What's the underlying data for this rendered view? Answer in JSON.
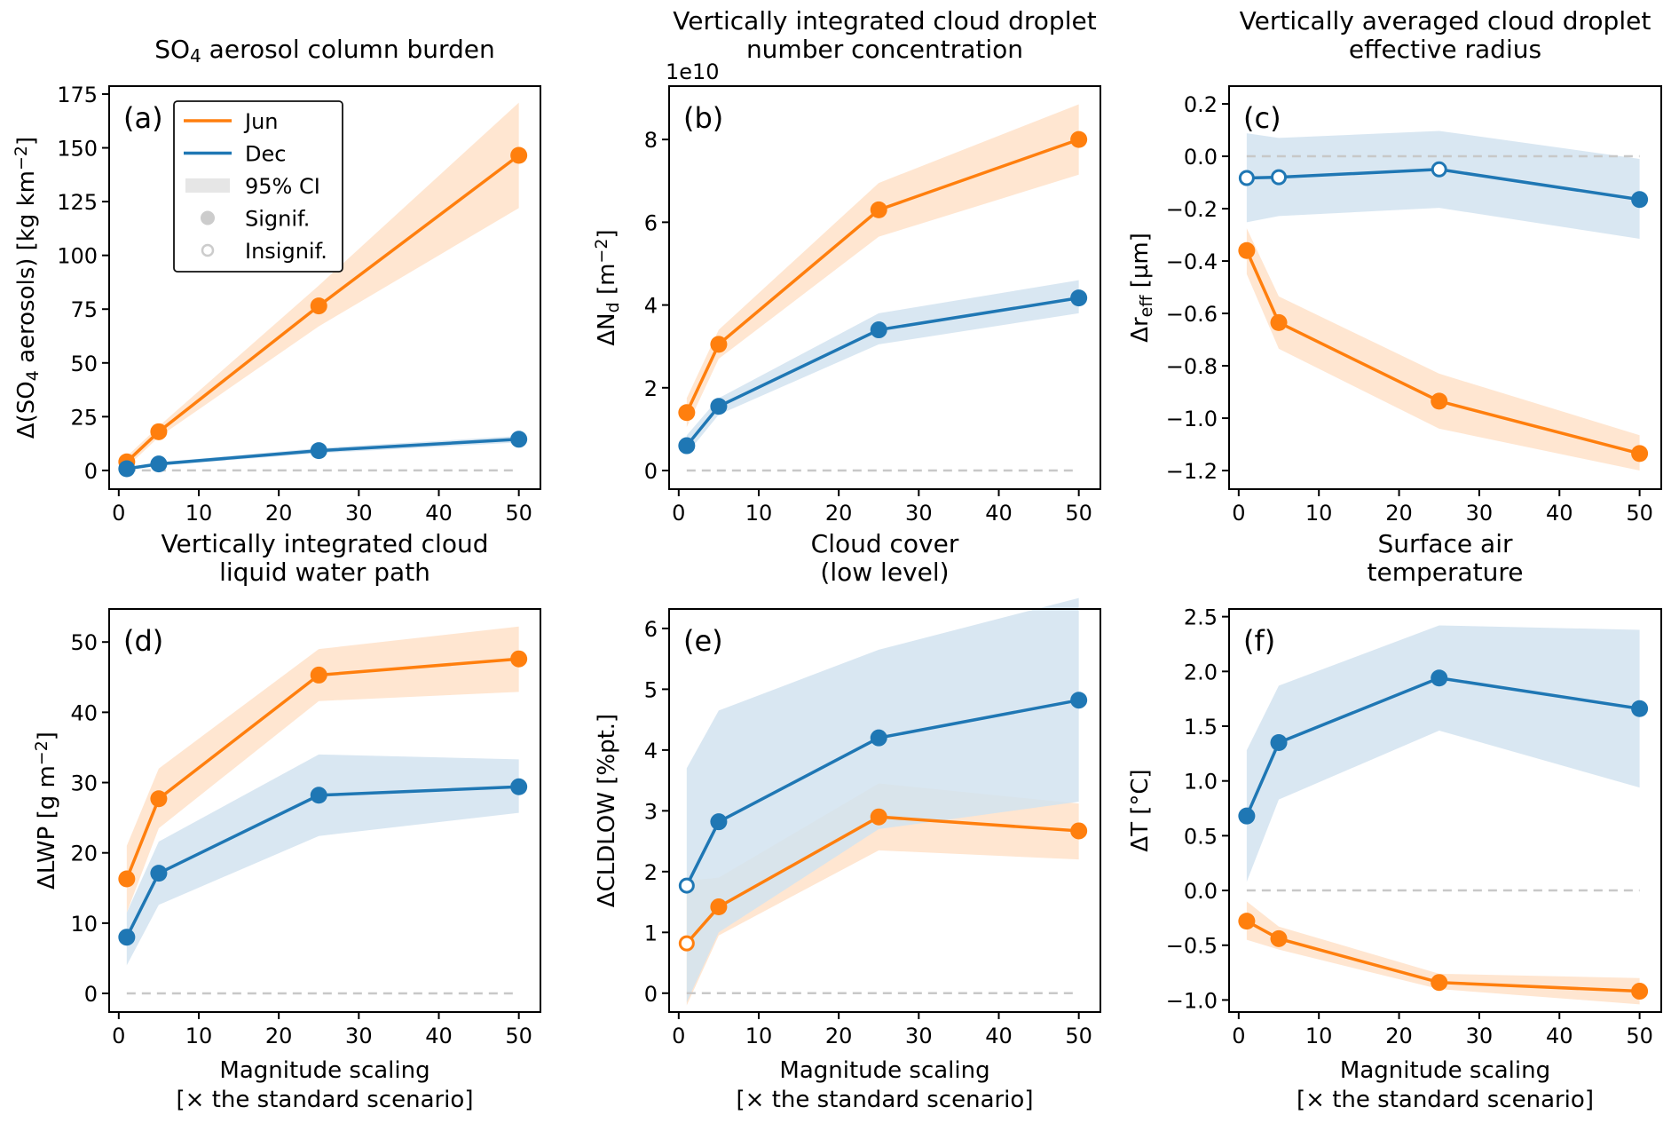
{
  "figure": {
    "colors": {
      "jun": "#ff7f0e",
      "dec": "#1f77b4",
      "jun_ci": "#ffe3cc",
      "dec_ci": "#d2e3f0",
      "zero_line": "#c8c8c8",
      "legend_ci": "#e6e6e6",
      "legend_marker": "#cccccc"
    },
    "legend": {
      "entries": [
        {
          "label": "Jun",
          "kind": "line",
          "series": "jun"
        },
        {
          "label": "Dec",
          "kind": "line",
          "series": "dec"
        },
        {
          "label": "95% CI",
          "kind": "patch"
        },
        {
          "label": "Signif.",
          "kind": "filled-marker"
        },
        {
          "label": "Insignif.",
          "kind": "open-marker"
        }
      ]
    },
    "shared_xlabel_line1": "Magnitude scaling",
    "shared_xlabel_line2": "[× the standard scenario]"
  },
  "chart_data": [
    {
      "type": "line",
      "panel": "(a)",
      "title": "SO4 aerosol column burden",
      "title_parts": {
        "pre": "SO",
        "sub": "4",
        "post": " aerosol column burden"
      },
      "ylabel": "Δ(SO4 aerosols) [kg km−2]",
      "ylabel_parts": {
        "a": "Δ(SO",
        "sub": "4",
        "b": " aerosols) [kg km",
        "sup": "−2",
        "c": "]"
      },
      "xlabel": "",
      "x": [
        1,
        5,
        25,
        50
      ],
      "xlim": [
        -1.2,
        52.7
      ],
      "xticks": [
        0,
        10,
        20,
        30,
        40,
        50
      ],
      "ylim": [
        -8.7,
        178.7
      ],
      "yticks": [
        0,
        25,
        50,
        75,
        100,
        125,
        150,
        175
      ],
      "ytick_labels": [
        "0",
        "25",
        "50",
        "75",
        "100",
        "125",
        "150",
        "175"
      ],
      "offset_label": "",
      "legend": "top-left",
      "series": [
        {
          "name": "Jun",
          "values": [
            4,
            18,
            76.5,
            146.5
          ],
          "ci_low": [
            1.5,
            15.5,
            67,
            122
          ],
          "ci_high": [
            6.5,
            20.5,
            86,
            171
          ],
          "significant": [
            true,
            true,
            true,
            true
          ]
        },
        {
          "name": "Dec",
          "values": [
            0.8,
            3,
            9.2,
            14.5
          ],
          "ci_low": [
            0.2,
            2.2,
            8,
            13
          ],
          "ci_high": [
            1.4,
            3.8,
            10.4,
            16
          ],
          "significant": [
            true,
            true,
            true,
            true
          ]
        }
      ],
      "zero_line": true
    },
    {
      "type": "line",
      "panel": "(b)",
      "title": "Vertically integrated cloud droplet number concentration",
      "title_lines": [
        "Vertically integrated cloud droplet",
        "number concentration"
      ],
      "ylabel": "ΔNd [m−2]",
      "ylabel_parts": {
        "a": "ΔN",
        "sub": "d",
        "b": " [m",
        "sup": "−2",
        "c": "]"
      },
      "xlabel": "",
      "x": [
        1,
        5,
        25,
        50
      ],
      "xlim": [
        -1.2,
        52.7
      ],
      "xticks": [
        0,
        10,
        20,
        30,
        40,
        50
      ],
      "ylim": [
        -0.45,
        9.29
      ],
      "yticks": [
        0,
        2,
        4,
        6,
        8
      ],
      "ytick_labels": [
        "0",
        "2",
        "4",
        "6",
        "8"
      ],
      "offset_label": "1e10",
      "series": [
        {
          "name": "Jun",
          "values": [
            1.4,
            3.05,
            6.3,
            8.0
          ],
          "ci_low": [
            1.05,
            2.7,
            5.65,
            7.15
          ],
          "ci_high": [
            1.75,
            3.4,
            6.95,
            8.85
          ],
          "significant": [
            true,
            true,
            true,
            true
          ]
        },
        {
          "name": "Dec",
          "values": [
            0.6,
            1.55,
            3.4,
            4.17
          ],
          "ci_low": [
            0.4,
            1.35,
            3.05,
            3.8
          ],
          "ci_high": [
            0.85,
            1.75,
            3.8,
            4.6
          ],
          "significant": [
            true,
            true,
            true,
            true
          ]
        }
      ],
      "zero_line": true
    },
    {
      "type": "line",
      "panel": "(c)",
      "title": "Vertically averaged cloud droplet effective radius",
      "title_lines": [
        "Vertically averaged cloud droplet",
        "effective radius"
      ],
      "ylabel": "Δreff [µm]",
      "ylabel_parts": {
        "a": "Δr",
        "sub": "eff",
        "b": " [µm]",
        "sup": "",
        "c": ""
      },
      "xlabel": "",
      "x": [
        1,
        5,
        25,
        50
      ],
      "xlim": [
        -1.2,
        52.7
      ],
      "xticks": [
        0,
        10,
        20,
        30,
        40,
        50
      ],
      "ylim": [
        -1.271,
        0.268
      ],
      "yticks": [
        -1.2,
        -1.0,
        -0.8,
        -0.6,
        -0.4,
        -0.2,
        0.0,
        0.2
      ],
      "ytick_labels": [
        "−1.2",
        "−1.0",
        "−0.8",
        "−0.6",
        "−0.4",
        "−0.2",
        "0.0",
        "0.2"
      ],
      "offset_label": "",
      "series": [
        {
          "name": "Jun",
          "values": [
            -0.36,
            -0.635,
            -0.935,
            -1.135
          ],
          "ci_low": [
            -0.45,
            -0.735,
            -1.04,
            -1.2
          ],
          "ci_high": [
            -0.275,
            -0.535,
            -0.83,
            -1.065
          ],
          "significant": [
            true,
            true,
            true,
            true
          ]
        },
        {
          "name": "Dec",
          "values": [
            -0.083,
            -0.08,
            -0.05,
            -0.165
          ],
          "ci_low": [
            -0.252,
            -0.228,
            -0.197,
            -0.315
          ],
          "ci_high": [
            0.088,
            0.07,
            0.097,
            -0.01
          ],
          "significant": [
            false,
            false,
            false,
            true
          ]
        }
      ],
      "zero_line": true
    },
    {
      "type": "line",
      "panel": "(d)",
      "title": "Vertically integrated cloud liquid water path",
      "title_lines": [
        "Vertically integrated cloud",
        "liquid water path"
      ],
      "ylabel": "ΔLWP [g m−2]",
      "ylabel_parts": {
        "a": "ΔLWP [g m",
        "sub": "",
        "b": "",
        "sup": "−2",
        "c": "]"
      },
      "xlabel": "Magnitude scaling [× the standard scenario]",
      "x": [
        1,
        5,
        25,
        50
      ],
      "xlim": [
        -1.2,
        52.7
      ],
      "xticks": [
        0,
        10,
        20,
        30,
        40,
        50
      ],
      "ylim": [
        -2.65,
        54.7
      ],
      "yticks": [
        0,
        10,
        20,
        30,
        40,
        50
      ],
      "ytick_labels": [
        "0",
        "10",
        "20",
        "30",
        "40",
        "50"
      ],
      "offset_label": "",
      "series": [
        {
          "name": "Jun",
          "values": [
            16.3,
            27.7,
            45.3,
            47.6
          ],
          "ci_low": [
            11.5,
            23.5,
            41.6,
            42.9
          ],
          "ci_high": [
            21.0,
            32.0,
            49.0,
            52.2
          ],
          "significant": [
            true,
            true,
            true,
            true
          ]
        },
        {
          "name": "Dec",
          "values": [
            8.0,
            17.1,
            28.2,
            29.4
          ],
          "ci_low": [
            4.0,
            12.6,
            22.4,
            25.7
          ],
          "ci_high": [
            11.5,
            21.6,
            34.0,
            33.3
          ],
          "significant": [
            true,
            true,
            true,
            true
          ]
        }
      ],
      "zero_line": true
    },
    {
      "type": "line",
      "panel": "(e)",
      "title": "Cloud cover (low level)",
      "title_lines": [
        "Cloud cover",
        "(low level)"
      ],
      "ylabel": "ΔCLDLOW [%pt.]",
      "ylabel_parts": {
        "a": "ΔCLDLOW [%pt.]",
        "sub": "",
        "b": "",
        "sup": "",
        "c": ""
      },
      "xlabel": "Magnitude scaling [× the standard scenario]",
      "x": [
        1,
        5,
        25,
        50
      ],
      "xlim": [
        -1.2,
        52.7
      ],
      "xticks": [
        0,
        10,
        20,
        30,
        40,
        50
      ],
      "ylim": [
        -0.31,
        6.32
      ],
      "yticks": [
        0,
        1,
        2,
        3,
        4,
        5,
        6
      ],
      "ytick_labels": [
        "0",
        "1",
        "2",
        "3",
        "4",
        "5",
        "6"
      ],
      "offset_label": "",
      "series": [
        {
          "name": "Jun",
          "values": [
            0.82,
            1.42,
            2.9,
            2.67
          ],
          "ci_low": [
            -0.2,
            0.95,
            2.35,
            2.2
          ],
          "ci_high": [
            1.85,
            1.9,
            3.45,
            3.12
          ],
          "significant": [
            false,
            true,
            true,
            true
          ]
        },
        {
          "name": "Dec",
          "values": [
            1.77,
            2.82,
            4.2,
            4.82
          ],
          "ci_low": [
            -0.15,
            1.0,
            2.7,
            3.15
          ],
          "ci_high": [
            3.7,
            4.65,
            5.65,
            6.5
          ],
          "significant": [
            false,
            true,
            true,
            true
          ]
        }
      ],
      "zero_line": true
    },
    {
      "type": "line",
      "panel": "(f)",
      "title": "Surface air temperature",
      "title_lines": [
        "Surface air",
        "temperature"
      ],
      "ylabel": "ΔT [°C]",
      "ylabel_parts": {
        "a": "ΔT [°C]",
        "sub": "",
        "b": "",
        "sup": "",
        "c": ""
      },
      "xlabel": "Magnitude scaling [× the standard scenario]",
      "x": [
        1,
        5,
        25,
        50
      ],
      "xlim": [
        -1.2,
        52.7
      ],
      "xticks": [
        0,
        10,
        20,
        30,
        40,
        50
      ],
      "ylim": [
        -1.11,
        2.57
      ],
      "yticks": [
        -1.0,
        -0.5,
        0.0,
        0.5,
        1.0,
        1.5,
        2.0,
        2.5
      ],
      "ytick_labels": [
        "−1.0",
        "−0.5",
        "0.0",
        "0.5",
        "1.0",
        "1.5",
        "2.0",
        "2.5"
      ],
      "offset_label": "",
      "series": [
        {
          "name": "Jun",
          "values": [
            -0.28,
            -0.44,
            -0.84,
            -0.92
          ],
          "ci_low": [
            -0.45,
            -0.54,
            -0.9,
            -1.04
          ],
          "ci_high": [
            -0.1,
            -0.33,
            -0.76,
            -0.8
          ],
          "significant": [
            true,
            true,
            true,
            true
          ]
        },
        {
          "name": "Dec",
          "values": [
            0.68,
            1.35,
            1.94,
            1.66
          ],
          "ci_low": [
            0.08,
            0.83,
            1.46,
            0.94
          ],
          "ci_high": [
            1.28,
            1.87,
            2.42,
            2.38
          ],
          "significant": [
            true,
            true,
            true,
            true
          ]
        }
      ],
      "zero_line": true
    }
  ]
}
